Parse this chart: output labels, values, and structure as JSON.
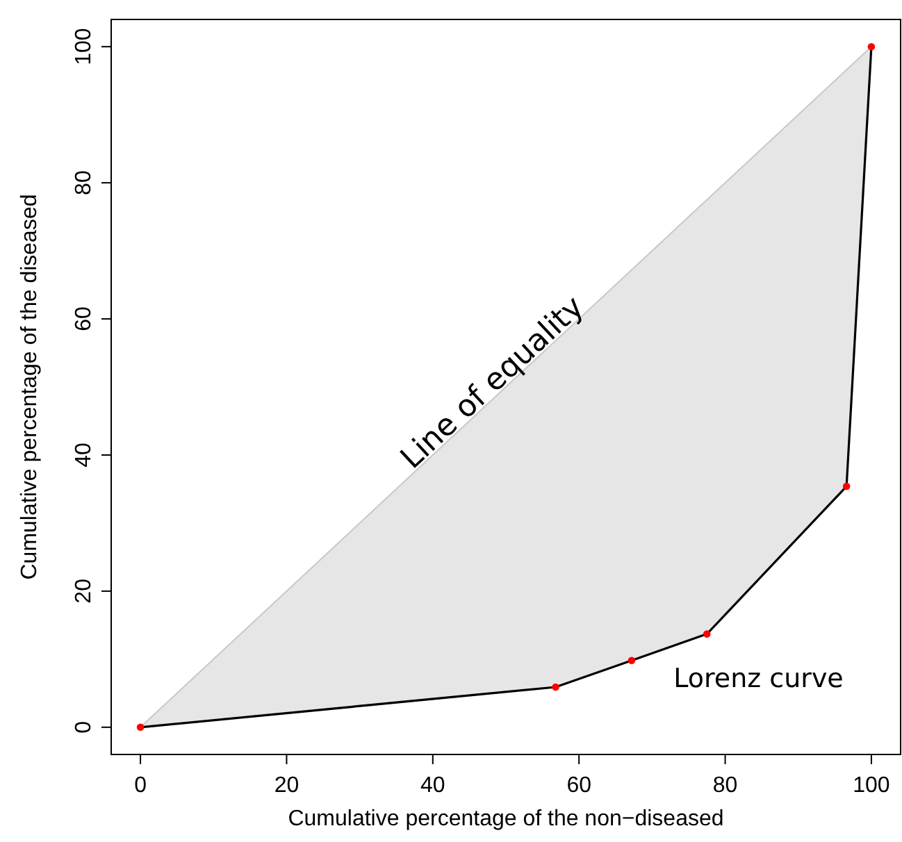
{
  "chart_data": {
    "type": "line",
    "xlabel": "Cumulative percentage of the non−diseased",
    "ylabel": "Cumulative percentage of the diseased",
    "xlim": [
      -4,
      104
    ],
    "ylim": [
      -4,
      104
    ],
    "xticks": [
      0,
      20,
      40,
      60,
      80,
      100
    ],
    "yticks": [
      0,
      20,
      40,
      60,
      80,
      100
    ],
    "series": [
      {
        "name": "Line of equality",
        "color": "#c8c8c8",
        "marker": "none",
        "x": [
          0,
          56.8,
          67.2,
          77.5,
          96.6,
          100
        ],
        "values": [
          0,
          56.8,
          67.2,
          77.5,
          96.6,
          100
        ],
        "lower": [
          0,
          5.9,
          9.8,
          13.7,
          35.4,
          100
        ],
        "upper": [
          0,
          56.8,
          67.2,
          77.5,
          96.6,
          100
        ]
      },
      {
        "name": "Lorenz curve",
        "color": "#000000",
        "marker": "none",
        "x": [
          0,
          56.8,
          67.2,
          77.5,
          96.6,
          100
        ],
        "values": [
          0,
          5.9,
          9.8,
          13.7,
          35.4,
          100
        ]
      },
      {
        "type": "scatter",
        "color": "#ff0000",
        "marker": "circle",
        "x": [
          0,
          56.8,
          67.2,
          77.5,
          96.6,
          100
        ],
        "values": [
          0,
          5.9,
          9.8,
          13.7,
          35.4,
          100
        ]
      }
    ]
  }
}
